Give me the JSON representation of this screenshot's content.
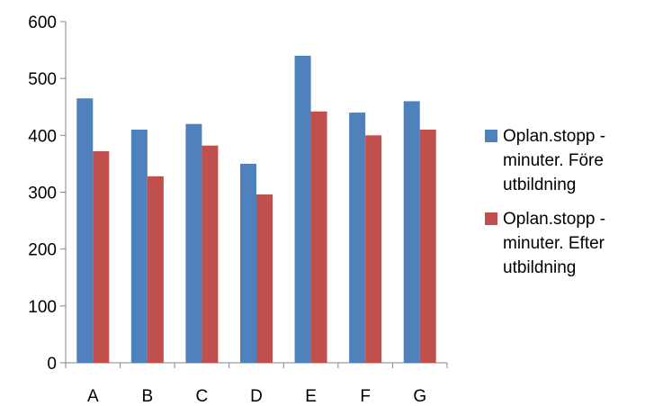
{
  "chart_data": {
    "type": "bar",
    "categories": [
      "A",
      "B",
      "C",
      "D",
      "E",
      "F",
      "G"
    ],
    "series": [
      {
        "name": "Oplan.stopp - minuter. Före utbildning",
        "color": "#4F81BD",
        "values": [
          465,
          410,
          420,
          350,
          540,
          440,
          460
        ]
      },
      {
        "name": "Oplan.stopp - minuter. Efter utbildning",
        "color": "#C0504D",
        "values": [
          372,
          328,
          382,
          296,
          442,
          400,
          410
        ]
      }
    ],
    "ylim": [
      0,
      600
    ],
    "yticks": [
      0,
      100,
      200,
      300,
      400,
      500,
      600
    ],
    "grid": false,
    "legend_position": "right"
  }
}
